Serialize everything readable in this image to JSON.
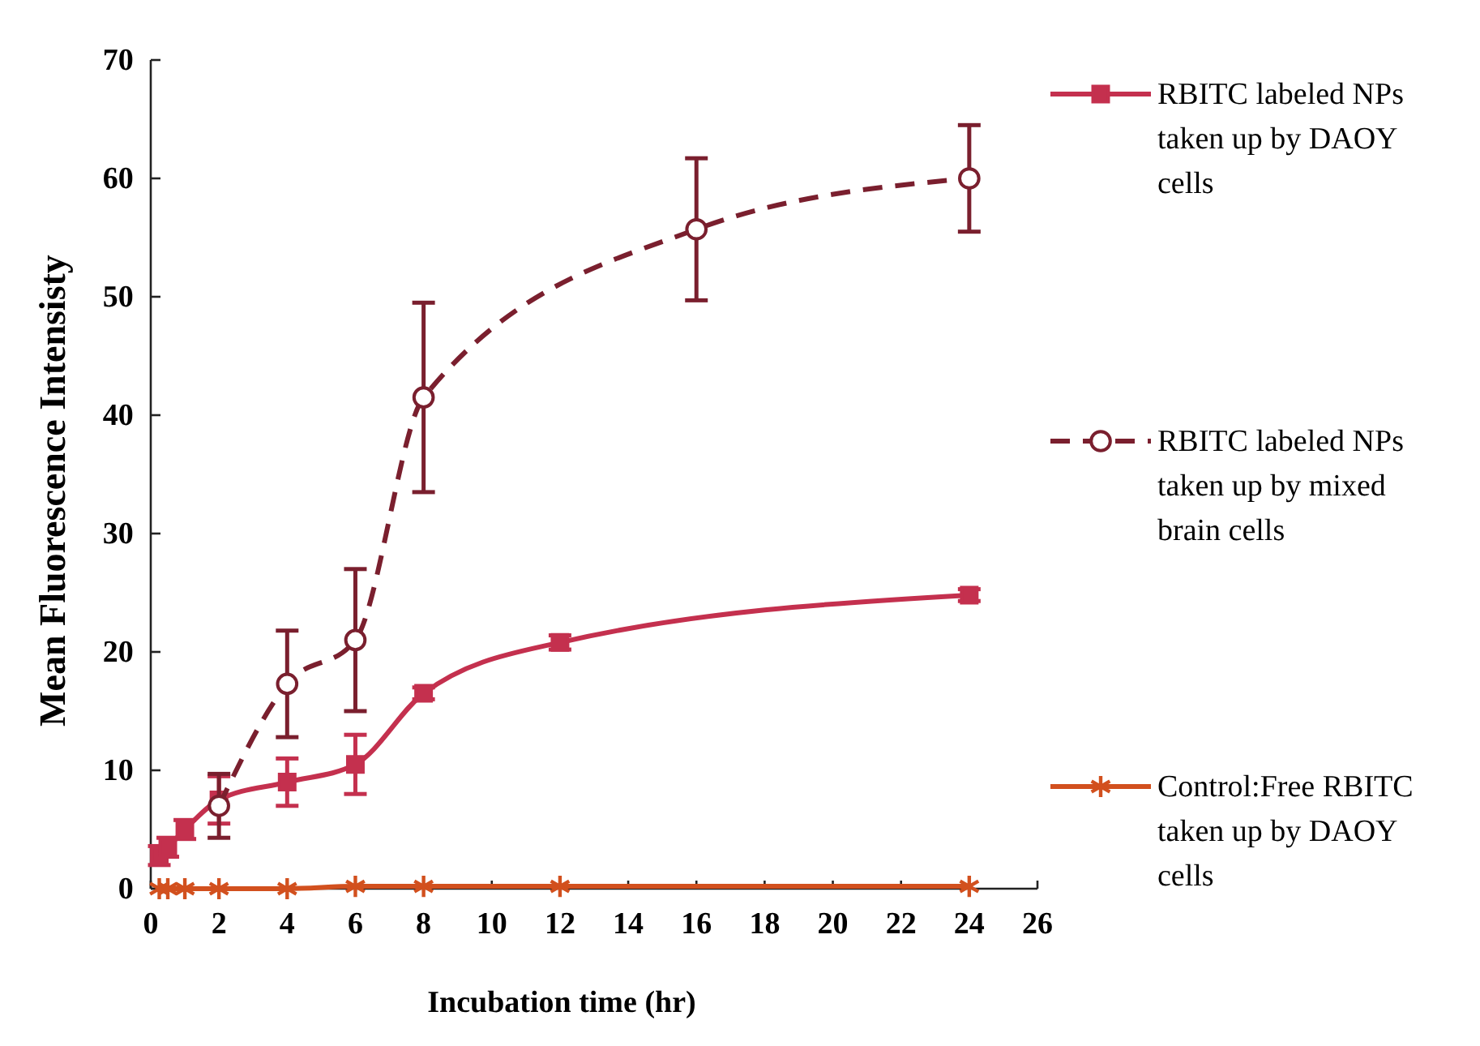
{
  "chart_data": {
    "type": "line",
    "xlabel": "Incubation time (hr)",
    "ylabel": "Mean Fluorescence Intensisty",
    "xlim": [
      0,
      26
    ],
    "xticks": [
      0,
      2,
      4,
      6,
      8,
      10,
      12,
      14,
      16,
      18,
      20,
      22,
      24,
      26
    ],
    "ylim": [
      0,
      70
    ],
    "yticks": [
      0,
      10,
      20,
      30,
      40,
      50,
      60,
      70
    ],
    "grid": false,
    "legend": "right",
    "series": [
      {
        "name": "RBITC labeled NPs taken up by DAOY cells",
        "color": "#c4304e",
        "marker": "square",
        "line_style": "solid",
        "x": [
          0.25,
          0.5,
          1,
          2,
          4,
          6,
          8,
          12,
          24
        ],
        "values": [
          2.8,
          3.5,
          5,
          7.5,
          9,
          10.5,
          16.5,
          20.8,
          24.8
        ],
        "errors": [
          0.8,
          0.8,
          0.8,
          2,
          2,
          2.5,
          0.5,
          0.6,
          0.5
        ]
      },
      {
        "name": "RBITC labeled NPs taken up by mixed brain cells",
        "color": "#7a1f2e",
        "marker": "circle",
        "line_style": "dashed",
        "x": [
          2,
          4,
          6,
          8,
          16,
          24
        ],
        "values": [
          7,
          17.3,
          21,
          41.5,
          55.7,
          60
        ],
        "errors": [
          2.7,
          4.5,
          6,
          8,
          6,
          4.5
        ]
      },
      {
        "name": "Control:Free RBITC taken up by DAOY cells",
        "color": "#d2501e",
        "marker": "cross",
        "line_style": "solid",
        "x": [
          0.25,
          0.5,
          1,
          2,
          4,
          6,
          8,
          12,
          24
        ],
        "values": [
          0,
          0,
          0,
          0,
          0,
          0.2,
          0.2,
          0.2,
          0.2
        ]
      }
    ]
  }
}
